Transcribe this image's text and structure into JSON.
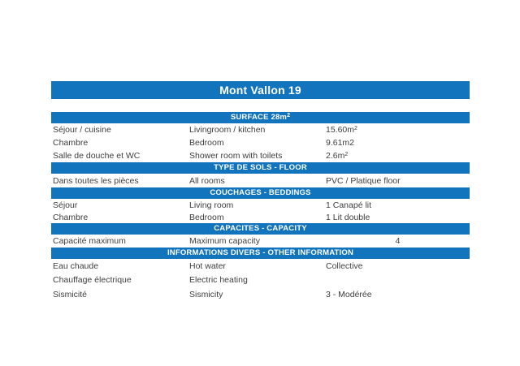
{
  "title": "Mont Vallon 19",
  "colors": {
    "accent": "#1174BD",
    "body_text": "#3E3E3E",
    "header_text": "#FFFFFF"
  },
  "sections": [
    {
      "header": "SURFACE 28m",
      "header_sup": "2",
      "rows": [
        {
          "fr": "Séjour / cuisine",
          "en": "Livingroom / kitchen",
          "value": "15.60m",
          "value_sup": "2"
        },
        {
          "fr": "Chambre",
          "en": "Bedroom",
          "value": "9.61m2",
          "value_sup": ""
        },
        {
          "fr": "Salle de douche et WC",
          "en": "Shower room with toilets",
          "value": "2.6m",
          "value_sup": "2"
        }
      ]
    },
    {
      "header": "TYPE DE SOLS - FLOOR",
      "header_sup": "",
      "rows": [
        {
          "fr": "Dans toutes les pièces",
          "en": "All rooms",
          "value": "PVC / Platique floor",
          "value_sup": ""
        }
      ]
    },
    {
      "header": "COUCHAGES - BEDDINGS",
      "header_sup": "",
      "rows": [
        {
          "fr": "Séjour",
          "en": "Living room",
          "value": "1 Canapé lit",
          "value_sup": ""
        },
        {
          "fr": "Chambre",
          "en": "Bedroom",
          "value": "1 Lit double",
          "value_sup": ""
        }
      ]
    },
    {
      "header": "CAPACITES - CAPACITY",
      "header_sup": "",
      "rows": [
        {
          "fr": "Capacité maximum",
          "en": "Maximum capacity",
          "value": "4",
          "value_sup": "",
          "value_align": "center"
        }
      ]
    },
    {
      "header": "INFORMATIONS DIVERS - OTHER INFORMATION",
      "header_sup": "",
      "rows": [
        {
          "fr": "Eau chaude",
          "en": "Hot water",
          "value": "Collective",
          "value_sup": ""
        },
        {
          "fr": "Chauffage électrique",
          "en": "Electric heating",
          "value": "",
          "value_sup": ""
        },
        {
          "fr": "Sismicité",
          "en": "Sismicity",
          "value": "3 - Modérée",
          "value_sup": ""
        }
      ]
    }
  ]
}
